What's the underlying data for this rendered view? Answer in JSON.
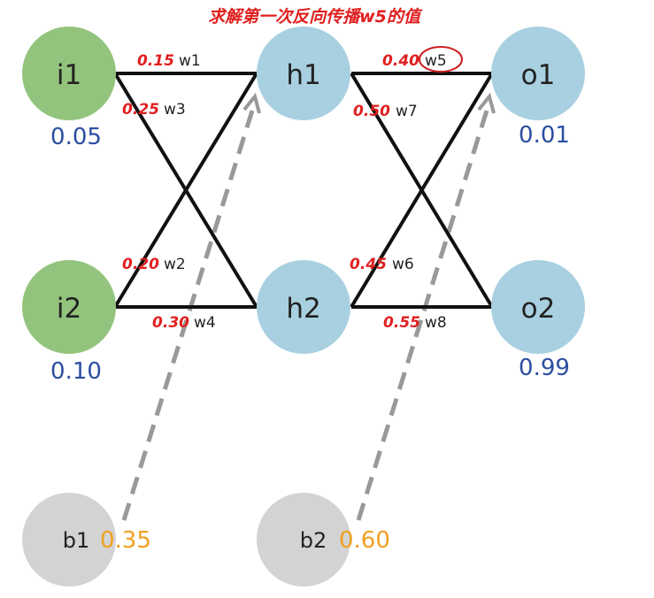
{
  "title": "求解第一次反向传播w5的值",
  "colors": {
    "input_node": "#93c47d",
    "hidden_output_node": "#a8d0e0",
    "bias_node": "#d3d3d3",
    "value_blue": "#2b4ea0",
    "value_orange": "#f0a020",
    "weight_red": "#e02020",
    "title_red": "#e02020",
    "edge": "#111111",
    "dashed_edge": "#999999",
    "highlight_ring": "#cc1f1f"
  },
  "nodes": {
    "i1": {
      "label": "i1",
      "value": "0.05"
    },
    "i2": {
      "label": "i2",
      "value": "0.10"
    },
    "h1": {
      "label": "h1"
    },
    "h2": {
      "label": "h2"
    },
    "o1": {
      "label": "o1",
      "value": "0.01"
    },
    "o2": {
      "label": "o2",
      "value": "0.99"
    },
    "b1": {
      "label": "b1",
      "value": "0.35"
    },
    "b2": {
      "label": "b2",
      "value": "0.60"
    }
  },
  "weights": {
    "w1": {
      "name": "w1",
      "value": "0.15"
    },
    "w2": {
      "name": "w2",
      "value": "0.20"
    },
    "w3": {
      "name": "w3",
      "value": "0.25"
    },
    "w4": {
      "name": "w4",
      "value": "0.30"
    },
    "w5": {
      "name": "w5",
      "value": "0.40"
    },
    "w6": {
      "name": "w6",
      "value": "0.45"
    },
    "w7": {
      "name": "w7",
      "value": "0.50"
    },
    "w8": {
      "name": "w8",
      "value": "0.55"
    }
  }
}
